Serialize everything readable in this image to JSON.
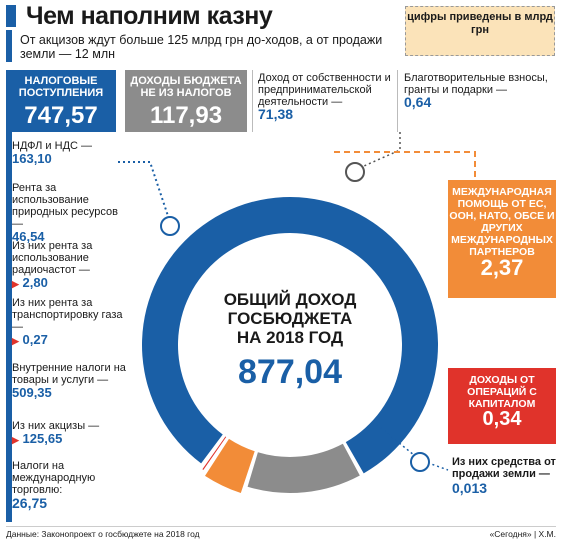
{
  "header": {
    "title": "Чем наполним казну",
    "lead": "От акцизов ждут больше 125 млрд грн до-ходов, а от продажи земли — 12 млн",
    "note": "цифры приведены в млрд грн"
  },
  "tax_box": {
    "label": "НАЛОГОВЫЕ ПОСТУПЛЕНИЯ",
    "value": "747,57"
  },
  "nontax_box": {
    "label": "ДОХОДЫ БЮДЖЕТА НЕ ИЗ НАЛОГОВ",
    "value": "117,93"
  },
  "property": {
    "label": "Доход от собственности и предпринимательской деятельности —",
    "value": "71,38"
  },
  "charity": {
    "label": "Благотворительные взносы, гранты и подарки —",
    "value": "0,64"
  },
  "left_items": [
    {
      "label": "НДФЛ и НДС —",
      "value": "163,10"
    },
    {
      "label": "Рента за использование природных ресурсов —",
      "value": "46,54"
    },
    {
      "label": "Из них рента за использование радиочастот —",
      "value": "2,80"
    },
    {
      "label": "Из них рента за транспортировку газа —",
      "value": "0,27"
    },
    {
      "label": "Внутренние налоги на товары и услуги —",
      "value": "509,35"
    },
    {
      "label": "Из них акцизы —",
      "value": "125,65"
    },
    {
      "label": "Налоги на международную торговлю:",
      "value": "26,75"
    }
  ],
  "intl": {
    "label": "МЕЖДУНАРОДНАЯ ПОМОЩЬ ОТ ЕС, ООН, НАТО, ОБСЕ И ДРУГИХ МЕЖДУНАРОДНЫХ ПАРТНЕРОВ",
    "value": "2,37"
  },
  "capital": {
    "label": "ДОХОДЫ ОТ ОПЕРАЦИЙ С КАПИТАЛОМ",
    "value": "0,34"
  },
  "land": {
    "label": "Из них средства от продажи земли —",
    "value": "0,013"
  },
  "center": {
    "l1": "ОБЩИЙ ДОХОД",
    "l2": "ГОСБЮДЖЕТА",
    "l3": "НА 2018 ГОД",
    "value": "877,04"
  },
  "footer": {
    "source": "Данные: Законопроект о госбюджете на 2018 год",
    "credit": "«Сегодня» | Х.М."
  },
  "chart_data": {
    "type": "pie",
    "title": "ОБЩИЙ ДОХОД ГОСБЮДЖЕТА НА 2018 ГОД",
    "total": 877.04,
    "categories": [
      "НАЛОГОВЫЕ ПОСТУПЛЕНИЯ",
      "ДОХОДЫ БЮДЖЕТА НЕ ИЗ НАЛОГОВ",
      "МЕЖДУНАРОДНАЯ ПОМОЩЬ",
      "ДОХОДЫ ОТ ОПЕРАЦИЙ С КАПИТАЛОМ"
    ],
    "values": [
      747.57,
      117.93,
      2.37,
      0.34
    ],
    "colors": [
      "#1a5fa6",
      "#8c8c8c",
      "#f28c38",
      "#e0332b"
    ]
  }
}
